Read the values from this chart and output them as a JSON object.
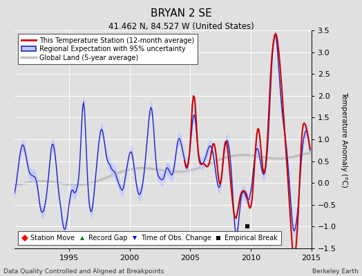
{
  "title": "BRYAN 2 SE",
  "subtitle": "41.462 N, 84.527 W (United States)",
  "ylabel": "Temperature Anomaly (°C)",
  "xlabel_left": "Data Quality Controlled and Aligned at Breakpoints",
  "xlabel_right": "Berkeley Earth",
  "ylim": [
    -1.5,
    3.5
  ],
  "xlim": [
    1990.5,
    2015.0
  ],
  "yticks": [
    -1.5,
    -1.0,
    -0.5,
    0.0,
    0.5,
    1.0,
    1.5,
    2.0,
    2.5,
    3.0,
    3.5
  ],
  "xticks": [
    1995,
    2000,
    2005,
    2010,
    2015
  ],
  "bg_color": "#e0e0e0",
  "grid_color": "#ffffff",
  "station_color": "#cc0000",
  "regional_color": "#2222bb",
  "regional_fill_color": "#c0c8ff",
  "global_color": "#c0c0c0",
  "empirical_break_x": 2009.7,
  "empirical_break_y": -1.0
}
